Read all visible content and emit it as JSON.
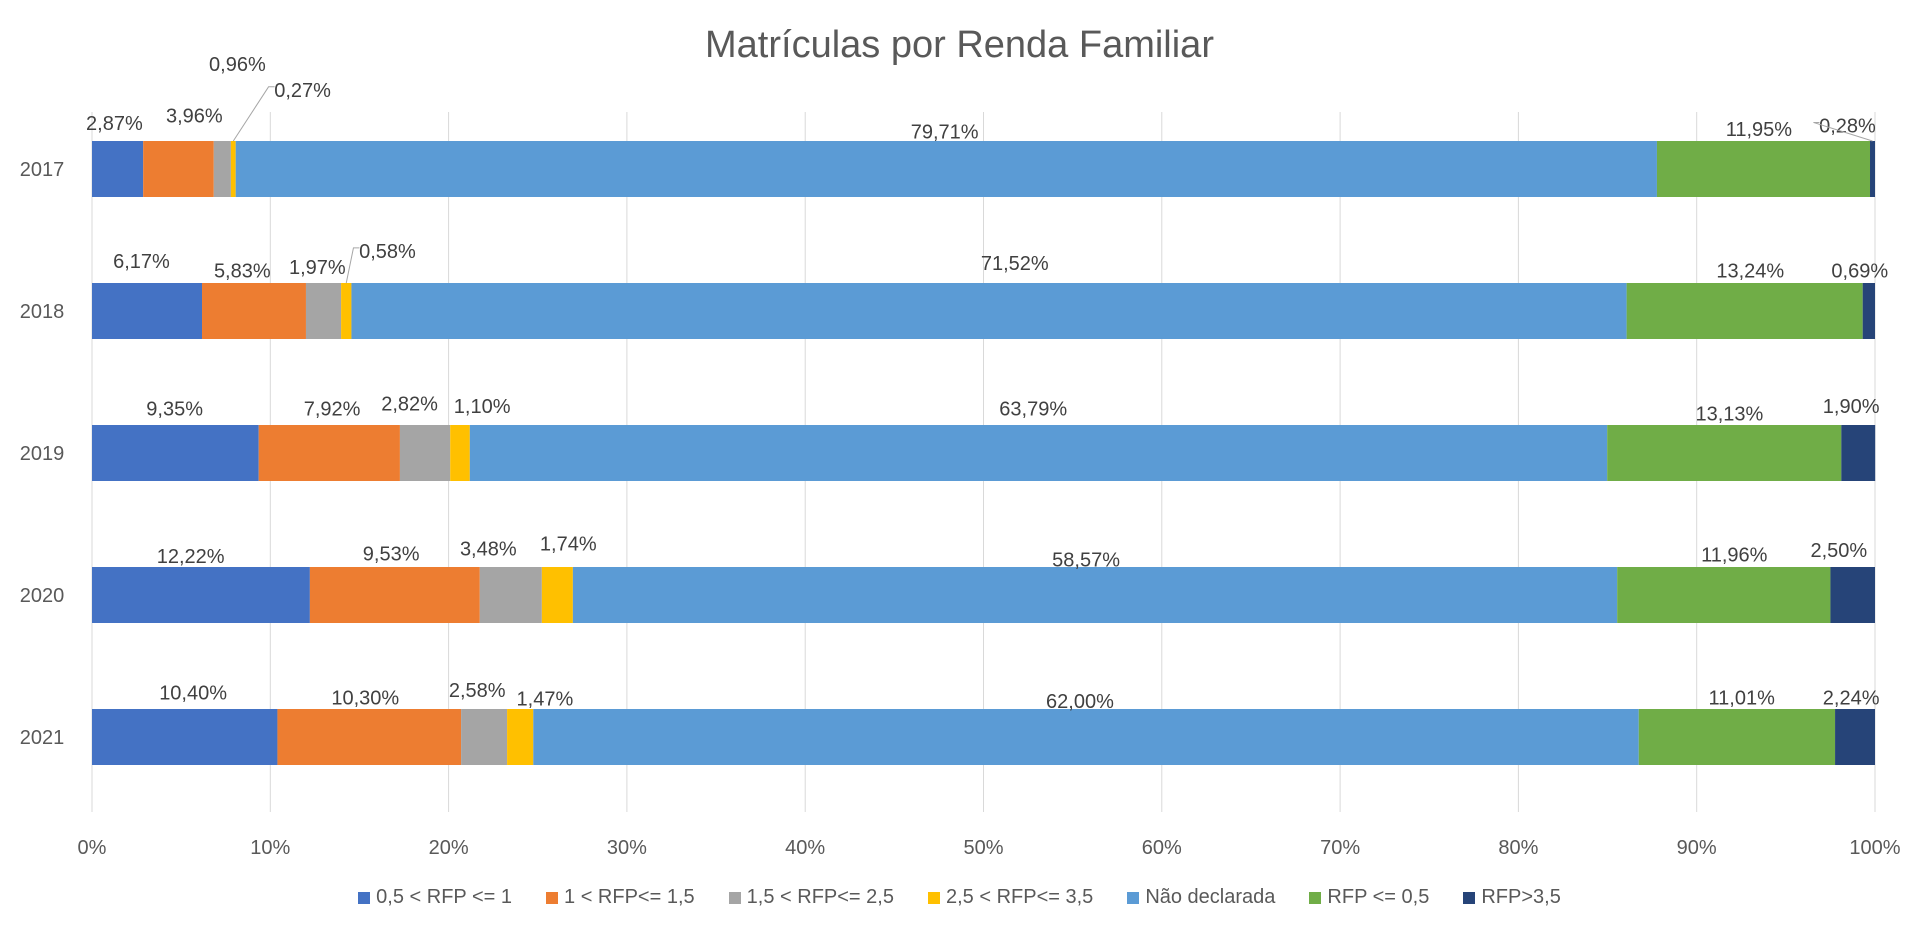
{
  "chart_data": {
    "type": "bar",
    "orientation": "horizontal",
    "stacked": "100%",
    "title": "Matrículas por Renda Familiar",
    "xlabel": "",
    "ylabel": "",
    "xlim": [
      0,
      100
    ],
    "x_ticks": [
      "0%",
      "10%",
      "20%",
      "30%",
      "40%",
      "50%",
      "60%",
      "70%",
      "80%",
      "90%",
      "100%"
    ],
    "grid": "vertical",
    "legend": "bottom",
    "categories": [
      "2017",
      "2018",
      "2019",
      "2020",
      "2021"
    ],
    "series": [
      {
        "name": "0,5 < RFP <= 1",
        "color": "#4472C4",
        "values": [
          2.87,
          6.17,
          9.35,
          12.22,
          10.4
        ]
      },
      {
        "name": "1 < RFP<= 1,5",
        "color": "#ED7D31",
        "values": [
          3.96,
          5.83,
          7.92,
          9.53,
          10.3
        ]
      },
      {
        "name": "1,5 < RFP<= 2,5",
        "color": "#A5A5A5",
        "values": [
          0.96,
          1.97,
          2.82,
          3.48,
          2.58
        ]
      },
      {
        "name": "2,5 < RFP<= 3,5",
        "color": "#FFC000",
        "values": [
          0.27,
          0.58,
          1.1,
          1.74,
          1.47
        ]
      },
      {
        "name": "Não declarada",
        "color": "#5B9BD5",
        "values": [
          79.71,
          71.52,
          63.79,
          58.57,
          62.0
        ]
      },
      {
        "name": "RFP <= 0,5",
        "color": "#70AD47",
        "values": [
          11.95,
          13.24,
          13.13,
          11.96,
          11.01
        ]
      },
      {
        "name": "RFP>3,5",
        "color": "#264478",
        "values": [
          0.28,
          0.69,
          1.9,
          2.5,
          2.24
        ]
      }
    ]
  }
}
